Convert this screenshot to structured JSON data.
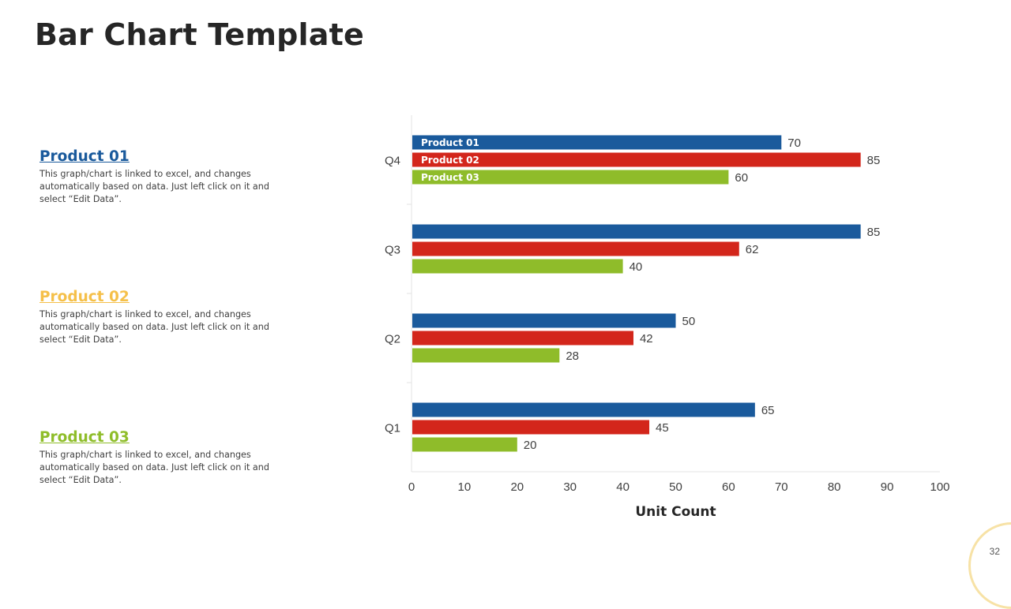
{
  "page": {
    "title": "Bar Chart Template",
    "page_number": "32"
  },
  "products": [
    {
      "heading": "Product  01",
      "description": "This graph/chart is linked to excel, and changes automatically  based on data. Just left click on it and select “Edit Data”.",
      "color": "#1a5a9c"
    },
    {
      "heading": "Product  02",
      "description": "This graph/chart is linked to excel, and changes automatically  based on data. Just left click on it and select “Edit Data”.",
      "color": "#f5c04a"
    },
    {
      "heading": "Product  03",
      "description": "This graph/chart is linked to excel, and changes automatically  based on data. Just left click on it and select “Edit Data”.",
      "color": "#8fbd2a"
    }
  ],
  "chart_data": {
    "type": "bar",
    "orientation": "horizontal",
    "categories": [
      "Q1",
      "Q2",
      "Q3",
      "Q4"
    ],
    "series": [
      {
        "name": "Product 01",
        "color": "#1a5a9c",
        "values": [
          65,
          50,
          85,
          70
        ]
      },
      {
        "name": "Product 02",
        "color": "#d3261b",
        "values": [
          45,
          42,
          62,
          85
        ]
      },
      {
        "name": "Product 03",
        "color": "#8fbc2a",
        "values": [
          20,
          28,
          40,
          60
        ]
      }
    ],
    "title": "",
    "xlabel": "Unit Count",
    "ylabel": "",
    "xlim": [
      0,
      100
    ],
    "xticks": [
      0,
      10,
      20,
      30,
      40,
      50,
      60,
      70,
      80,
      90,
      100
    ],
    "legend": "inside-bars-Q4"
  }
}
